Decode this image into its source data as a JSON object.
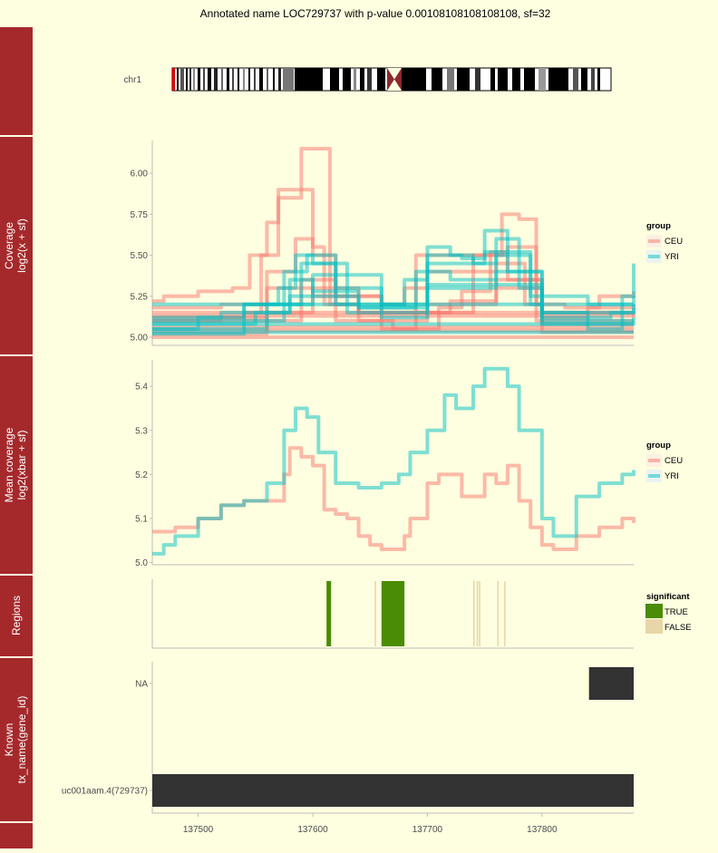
{
  "title": "Annotated name LOC729737 with p-value 0.00108108108108108, sf=32",
  "colors": {
    "background": "#fefee0",
    "strip": "#a5292b",
    "CEU": "#f8766d",
    "YRI": "#00bfc4",
    "significant_true": "#4a8c05",
    "significant_false": "#e8d5a8",
    "transcript": "#333333"
  },
  "ideogram": {
    "label": "chr1"
  },
  "panels": {
    "coverage": {
      "strip": [
        "Coverage",
        "log2(x + sf)"
      ]
    },
    "mean": {
      "strip": [
        "Mean coverage",
        "log2(xbar + sf)"
      ]
    },
    "regions": {
      "strip": [
        "Regions"
      ]
    },
    "known": {
      "strip": [
        "Known",
        "tx_name(gene_id)"
      ]
    }
  },
  "x_axis": {
    "ticks": [
      137500,
      137600,
      137700,
      137800
    ],
    "range": [
      137460,
      137880
    ]
  },
  "legends": {
    "group1": {
      "title": "group",
      "items": [
        "CEU",
        "YRI"
      ]
    },
    "group2": {
      "title": "group",
      "items": [
        "CEU",
        "YRI"
      ]
    },
    "significant": {
      "title": "significant",
      "items": [
        "TRUE",
        "FALSE"
      ]
    }
  },
  "chart_data": [
    {
      "type": "line",
      "panel": "Coverage",
      "ylabel": "log2(x + sf)",
      "ylim": [
        4.95,
        6.2
      ],
      "yticks": [
        "5.00",
        "5.25",
        "5.50",
        "5.75",
        "6.00"
      ],
      "series": [
        {
          "name": "CEU",
          "group": "CEU",
          "x": [
            137460,
            137470,
            137475,
            137500,
            137530,
            137545,
            137560,
            137570,
            137590,
            137600,
            137610,
            137640,
            137660,
            137680,
            137710,
            137730,
            137755,
            137770,
            137795,
            137800,
            137820,
            137850,
            137880
          ],
          "y": [
            5.22,
            5.25,
            5.25,
            5.28,
            5.3,
            5.5,
            5.7,
            5.85,
            5.9,
            5.55,
            5.2,
            5.15,
            5.05,
            5.05,
            5.18,
            5.28,
            5.52,
            5.55,
            5.2,
            5.2,
            5.18,
            5.25,
            5.28
          ]
        },
        {
          "name": "CEU",
          "group": "CEU",
          "x": [
            137460,
            137540,
            137555,
            137570,
            137590,
            137605,
            137615,
            137640,
            137660,
            137700,
            137740,
            137765,
            137780,
            137795,
            137880
          ],
          "y": [
            5.12,
            5.15,
            5.5,
            5.9,
            6.15,
            6.15,
            5.2,
            5.1,
            5.1,
            5.15,
            5.5,
            5.75,
            5.72,
            5.1,
            5.1
          ]
        },
        {
          "name": "CEU",
          "group": "CEU",
          "x": [
            137460,
            137520,
            137560,
            137585,
            137600,
            137620,
            137660,
            137680,
            137700,
            137760,
            137785,
            137800,
            137880
          ],
          "y": [
            5.1,
            5.12,
            5.4,
            5.6,
            5.5,
            5.25,
            5.2,
            5.3,
            5.4,
            5.45,
            5.2,
            5.08,
            5.08
          ]
        },
        {
          "name": "CEU",
          "group": "CEU",
          "x": [
            137460,
            137880
          ],
          "y": [
            5.0,
            5.0
          ]
        },
        {
          "name": "CEU",
          "group": "CEU",
          "x": [
            137460,
            137880
          ],
          "y": [
            5.04,
            5.04
          ]
        },
        {
          "name": "CEU",
          "group": "CEU",
          "x": [
            137460,
            137880
          ],
          "y": [
            5.06,
            5.06
          ]
        },
        {
          "name": "CEU",
          "group": "CEU",
          "x": [
            137460,
            137880
          ],
          "y": [
            5.13,
            5.13
          ]
        },
        {
          "name": "CEU",
          "group": "CEU",
          "x": [
            137460,
            137880
          ],
          "y": [
            5.15,
            5.15
          ]
        },
        {
          "name": "CEU",
          "group": "CEU",
          "x": [
            137460,
            137560,
            137600,
            137640,
            137700,
            137760,
            137800,
            137880
          ],
          "y": [
            5.1,
            5.15,
            5.3,
            5.15,
            5.2,
            5.35,
            5.15,
            5.12
          ]
        },
        {
          "name": "CEU",
          "group": "CEU",
          "x": [
            137460,
            137520,
            137560,
            137600,
            137660,
            137720,
            137760,
            137800,
            137840,
            137880
          ],
          "y": [
            5.18,
            5.2,
            5.3,
            5.25,
            5.15,
            5.22,
            5.3,
            5.12,
            5.18,
            5.2
          ]
        },
        {
          "name": "CEU",
          "group": "CEU",
          "x": [
            137460,
            137560,
            137590,
            137620,
            137670,
            137690,
            137740,
            137770,
            137800,
            137880
          ],
          "y": [
            5.02,
            5.1,
            5.35,
            5.1,
            5.05,
            5.5,
            5.5,
            5.35,
            5.03,
            5.03
          ]
        },
        {
          "name": "YRI",
          "group": "YRI",
          "x": [
            137460,
            137500,
            137540,
            137570,
            137585,
            137600,
            137620,
            137660,
            137680,
            137700,
            137720,
            137740,
            137760,
            137780,
            137800,
            137840,
            137870,
            137880
          ],
          "y": [
            5.05,
            5.12,
            5.2,
            5.3,
            5.5,
            5.45,
            5.3,
            5.2,
            5.35,
            5.55,
            5.5,
            5.45,
            5.6,
            5.3,
            5.1,
            5.05,
            5.25,
            5.45
          ]
        },
        {
          "name": "YRI",
          "group": "YRI",
          "x": [
            137460,
            137540,
            137575,
            137595,
            137620,
            137660,
            137700,
            137730,
            137750,
            137770,
            137800,
            137840,
            137880
          ],
          "y": [
            5.02,
            5.1,
            5.4,
            5.5,
            5.2,
            5.12,
            5.5,
            5.48,
            5.65,
            5.4,
            5.15,
            5.1,
            5.1
          ]
        },
        {
          "name": "YRI",
          "group": "YRI",
          "x": [
            137460,
            137550,
            137580,
            137600,
            137640,
            137690,
            137720,
            137760,
            137790,
            137800,
            137880
          ],
          "y": [
            5.08,
            5.15,
            5.35,
            5.28,
            5.18,
            5.4,
            5.35,
            5.5,
            5.2,
            5.15,
            5.2
          ]
        },
        {
          "name": "YRI",
          "group": "YRI",
          "x": [
            137460,
            137880
          ],
          "y": [
            5.03,
            5.03
          ]
        },
        {
          "name": "YRI",
          "group": "YRI",
          "x": [
            137460,
            137880
          ],
          "y": [
            5.08,
            5.08
          ]
        },
        {
          "name": "YRI",
          "group": "YRI",
          "x": [
            137460,
            137520,
            137580,
            137640,
            137700,
            137760,
            137800,
            137860,
            137880
          ],
          "y": [
            5.12,
            5.15,
            5.25,
            5.18,
            5.3,
            5.32,
            5.12,
            5.15,
            5.18
          ]
        },
        {
          "name": "YRI",
          "group": "YRI",
          "x": [
            137460,
            137540,
            137590,
            137630,
            137700,
            137750,
            137790,
            137840,
            137880
          ],
          "y": [
            5.1,
            5.2,
            5.45,
            5.15,
            5.45,
            5.52,
            5.25,
            5.2,
            5.25
          ]
        },
        {
          "name": "YRI",
          "group": "YRI",
          "x": [
            137460,
            137880
          ],
          "y": [
            5.2,
            5.2
          ]
        },
        {
          "name": "YRI",
          "group": "YRI",
          "x": [
            137460,
            137560,
            137600,
            137660,
            137700,
            137760,
            137800,
            137880
          ],
          "y": [
            5.05,
            5.2,
            5.38,
            5.2,
            5.32,
            5.4,
            5.08,
            5.12
          ]
        }
      ]
    },
    {
      "type": "line",
      "panel": "Mean coverage",
      "ylabel": "log2(xbar + sf)",
      "ylim": [
        4.995,
        5.46
      ],
      "yticks": [
        "5.0",
        "5.1",
        "5.2",
        "5.3",
        "5.4"
      ],
      "series": [
        {
          "name": "CEU",
          "group": "CEU",
          "x": [
            137460,
            137480,
            137500,
            137520,
            137540,
            137560,
            137575,
            137580,
            137590,
            137600,
            137610,
            137620,
            137630,
            137640,
            137650,
            137660,
            137670,
            137680,
            137685,
            137700,
            137710,
            137730,
            137750,
            137760,
            137770,
            137780,
            137790,
            137800,
            137810,
            137830,
            137850,
            137870,
            137880
          ],
          "y": [
            5.07,
            5.08,
            5.1,
            5.13,
            5.14,
            5.14,
            5.2,
            5.26,
            5.24,
            5.22,
            5.12,
            5.11,
            5.1,
            5.06,
            5.04,
            5.03,
            5.03,
            5.06,
            5.1,
            5.18,
            5.2,
            5.15,
            5.2,
            5.18,
            5.22,
            5.14,
            5.08,
            5.04,
            5.03,
            5.06,
            5.08,
            5.1,
            5.09
          ]
        },
        {
          "name": "YRI",
          "group": "YRI",
          "x": [
            137460,
            137470,
            137480,
            137500,
            137520,
            137540,
            137560,
            137575,
            137585,
            137595,
            137605,
            137620,
            137640,
            137660,
            137675,
            137685,
            137700,
            137715,
            137725,
            137740,
            137750,
            137770,
            137780,
            137800,
            137810,
            137830,
            137850,
            137870,
            137880
          ],
          "y": [
            5.02,
            5.04,
            5.06,
            5.1,
            5.13,
            5.14,
            5.18,
            5.3,
            5.35,
            5.33,
            5.25,
            5.18,
            5.17,
            5.18,
            5.2,
            5.25,
            5.3,
            5.38,
            5.35,
            5.4,
            5.44,
            5.4,
            5.3,
            5.1,
            5.06,
            5.15,
            5.18,
            5.2,
            5.21
          ]
        }
      ]
    },
    {
      "type": "bar",
      "panel": "Regions",
      "legend": "significant",
      "regions": [
        {
          "start": 137612,
          "end": 137616,
          "significant": true
        },
        {
          "start": 137660,
          "end": 137680,
          "significant": true
        },
        {
          "start": 137654,
          "end": 137655,
          "significant": false
        },
        {
          "start": 137740,
          "end": 137741,
          "significant": false
        },
        {
          "start": 137743,
          "end": 137744,
          "significant": false
        },
        {
          "start": 137745,
          "end": 137746,
          "significant": false
        },
        {
          "start": 137761,
          "end": 137762,
          "significant": false
        },
        {
          "start": 137767,
          "end": 137768,
          "significant": false
        }
      ]
    },
    {
      "type": "bar",
      "panel": "Known",
      "ylabel": "tx_name(gene_id)",
      "categories": [
        "NA",
        "uc001aam.4(729737)"
      ],
      "transcripts": [
        {
          "name": "NA",
          "start": 137841,
          "end": 137880
        },
        {
          "name": "uc001aam.4(729737)",
          "start": 137460,
          "end": 137880
        }
      ]
    }
  ]
}
